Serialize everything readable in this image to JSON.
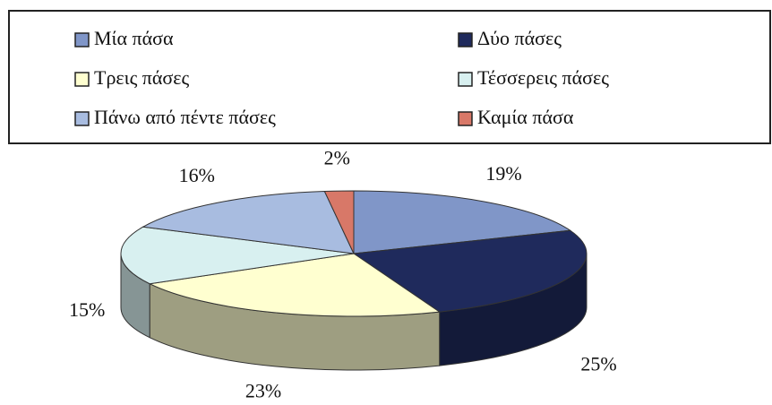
{
  "chart_data": {
    "type": "pie",
    "categories": [
      "Μία πάσα",
      "Δύο πάσες",
      "Τρεις πάσες",
      "Τέσσερεις πάσες",
      "Πάνω από πέντε πάσες",
      "Καμία πάσα"
    ],
    "values": [
      19,
      25,
      23,
      15,
      16,
      2
    ],
    "value_labels": [
      "19%",
      "25%",
      "23%",
      "15%",
      "16%",
      "2%"
    ],
    "colors": [
      "#8096c8",
      "#1f2a5c",
      "#ffffd0",
      "#d8f0f0",
      "#a8bce0",
      "#d87868"
    ],
    "legend": "top"
  }
}
